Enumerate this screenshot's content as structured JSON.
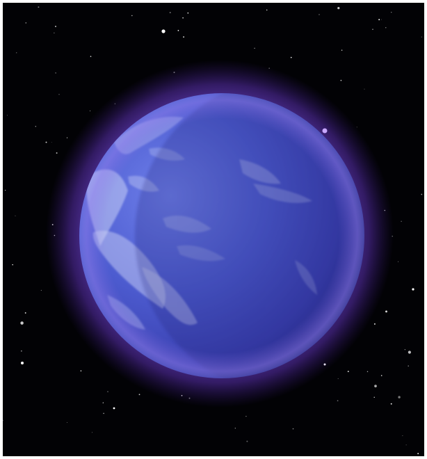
{
  "scene": {
    "subject": "planet",
    "background_color": "#020205",
    "frame_color": "#ffffff",
    "colors": {
      "space": "#020205",
      "haze_outer": "#5a2fb0",
      "haze_inner": "#7a55d8",
      "planet_light": "#6a78e6",
      "planet_mid": "#4a55c8",
      "planet_dark": "#2a2c8a",
      "cloud": "#c9cff5",
      "star": "#ffffff"
    }
  }
}
